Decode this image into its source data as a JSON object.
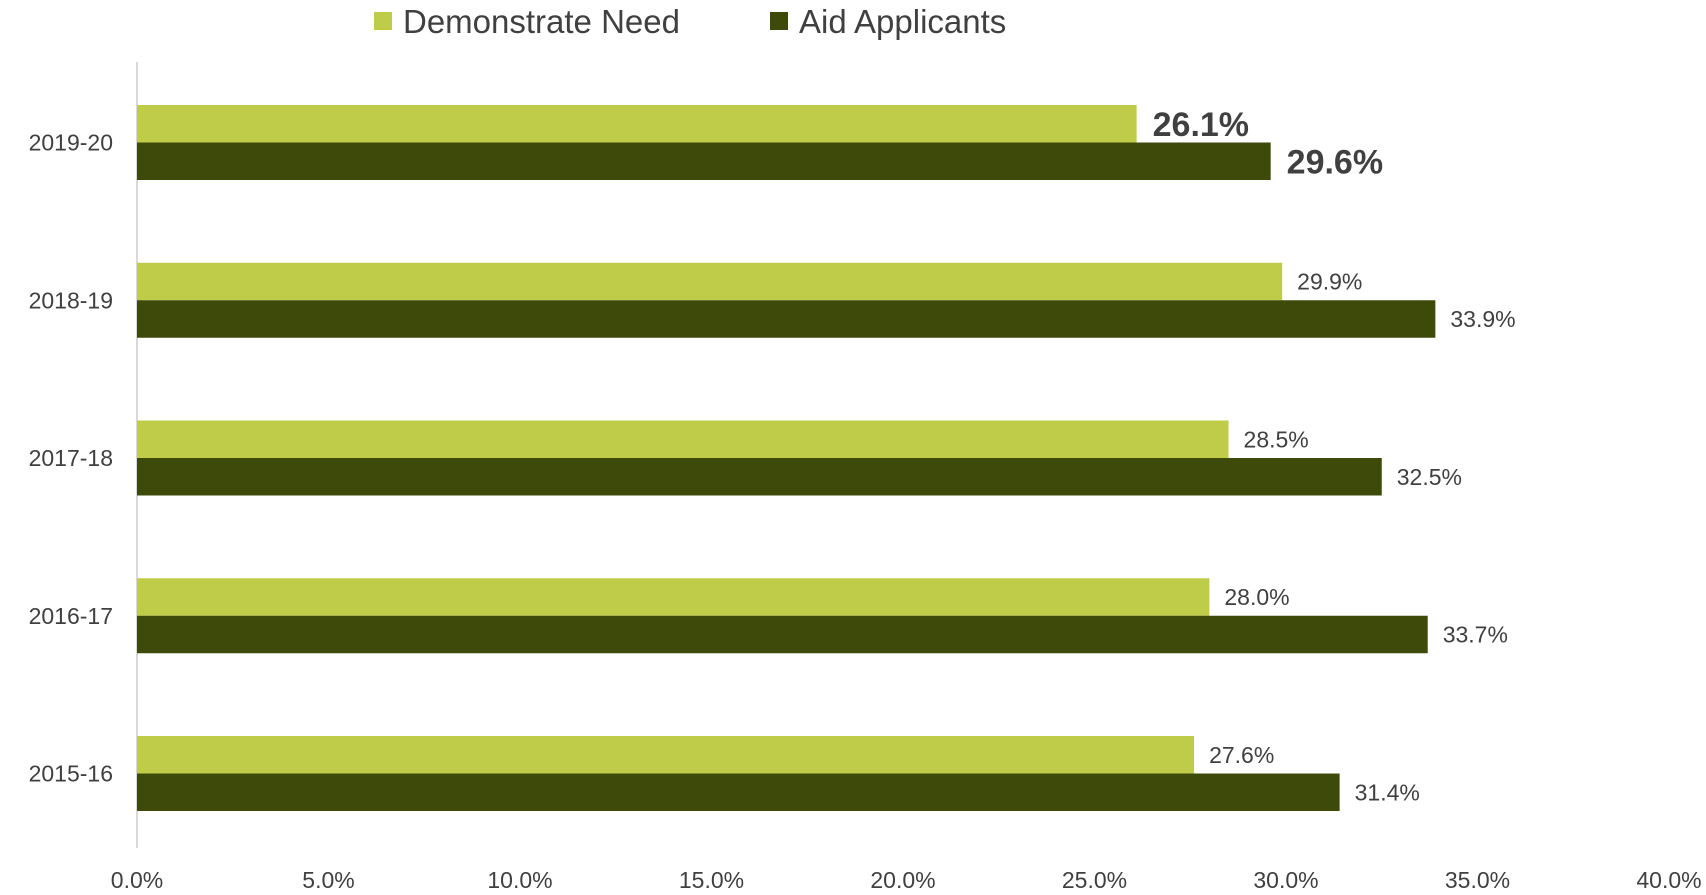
{
  "chart_data": {
    "type": "bar",
    "orientation": "horizontal",
    "categories": [
      "2019-20",
      "2018-19",
      "2017-18",
      "2016-17",
      "2015-16"
    ],
    "series": [
      {
        "name": "Demonstrate Need",
        "color": "#bfcc4a",
        "values": [
          26.1,
          29.9,
          28.5,
          28.0,
          27.6
        ]
      },
      {
        "name": "Aid Applicants",
        "color": "#3e4a0a",
        "values": [
          29.6,
          33.9,
          32.5,
          33.7,
          31.4
        ]
      }
    ],
    "data_labels": [
      [
        "26.1%",
        "29.9%",
        "28.5%",
        "28.0%",
        "27.6%"
      ],
      [
        "29.6%",
        "33.9%",
        "32.5%",
        "33.7%",
        "31.4%"
      ]
    ],
    "highlighted_category": "2019-20",
    "xlim": [
      0,
      40
    ],
    "xticks": [
      0,
      5,
      10,
      15,
      20,
      25,
      30,
      35,
      40
    ],
    "xtick_labels": [
      "0.0%",
      "5.0%",
      "10.0%",
      "15.0%",
      "20.0%",
      "25.0%",
      "30.0%",
      "35.0%",
      "40.0%"
    ],
    "legend_position": "top",
    "grid": false,
    "title": "",
    "xlabel": "",
    "ylabel": ""
  }
}
